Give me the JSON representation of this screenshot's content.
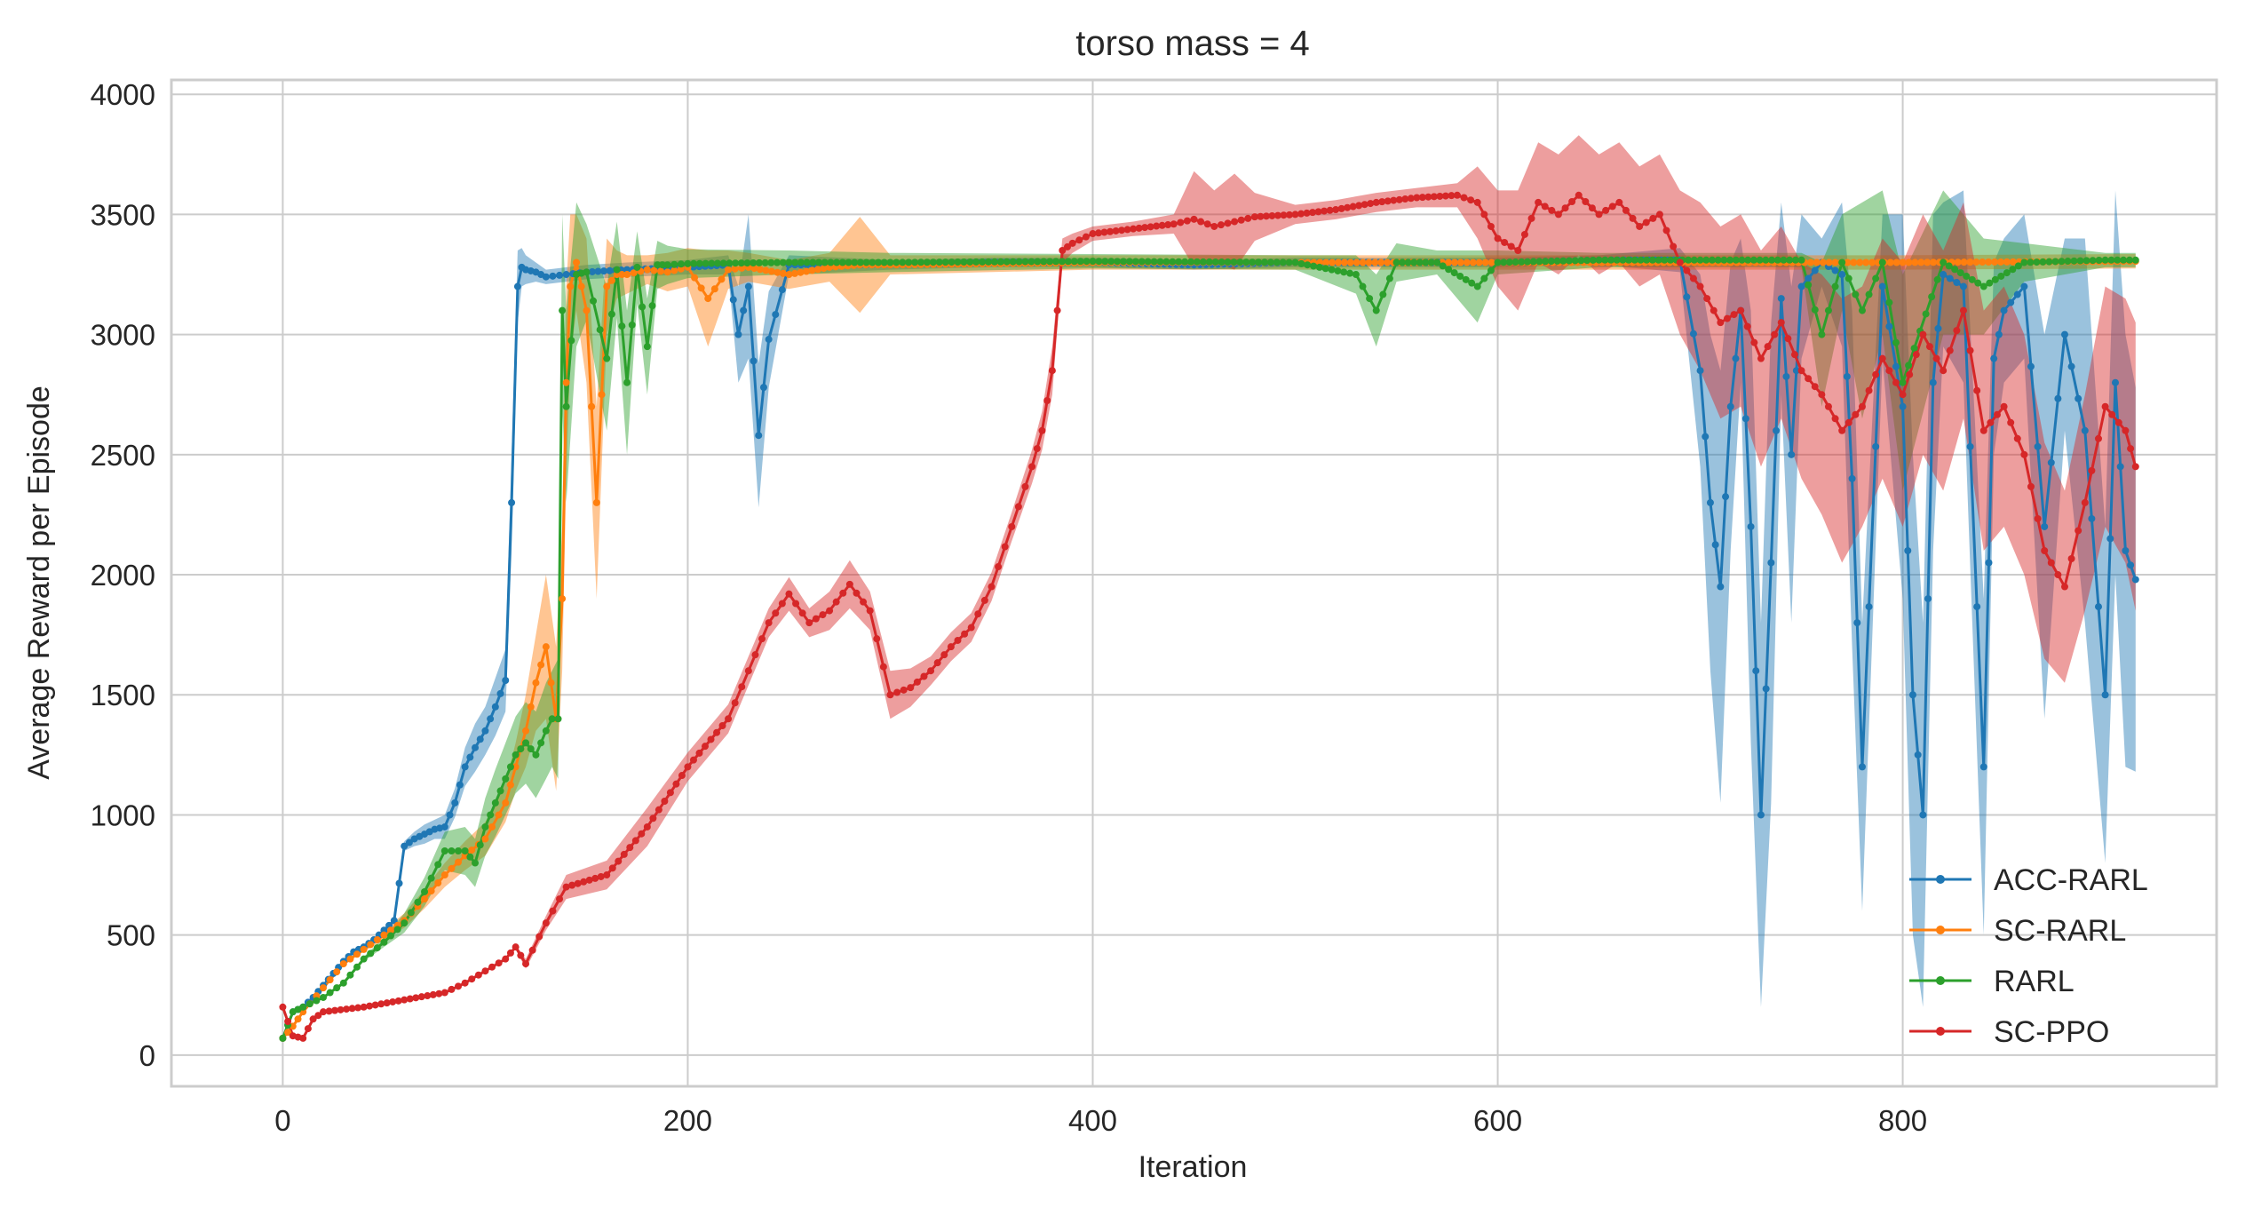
{
  "chart_data": {
    "type": "line",
    "title": "torso mass = 4",
    "xlabel": "Iteration",
    "ylabel": "Average Reward per Episode",
    "xlim": [
      -55,
      955
    ],
    "ylim": [
      -130,
      4060
    ],
    "xticks": [
      0,
      200,
      400,
      600,
      800
    ],
    "yticks": [
      0,
      500,
      1000,
      1500,
      2000,
      2500,
      3000,
      3500,
      4000
    ],
    "grid": true,
    "legend_position": "lower-right",
    "series": [
      {
        "name": "ACC-RARL",
        "color": "#1f77b4",
        "x": [
          0,
          5,
          10,
          15,
          20,
          25,
          30,
          35,
          40,
          45,
          50,
          55,
          60,
          65,
          70,
          75,
          80,
          85,
          90,
          95,
          100,
          105,
          110,
          113,
          116,
          118,
          120,
          125,
          130,
          140,
          150,
          170,
          200,
          220,
          225,
          230,
          235,
          240,
          250,
          300,
          350,
          400,
          450,
          500,
          550,
          600,
          650,
          690,
          700,
          705,
          710,
          715,
          720,
          725,
          730,
          735,
          740,
          745,
          750,
          760,
          770,
          775,
          780,
          790,
          800,
          805,
          810,
          815,
          820,
          830,
          840,
          845,
          850,
          860,
          870,
          880,
          890,
          900,
          905,
          910,
          915
        ],
        "values": [
          70,
          180,
          200,
          240,
          290,
          340,
          390,
          430,
          450,
          480,
          520,
          560,
          870,
          900,
          920,
          940,
          950,
          1050,
          1200,
          1280,
          1350,
          1450,
          1560,
          2300,
          3200,
          3280,
          3270,
          3260,
          3240,
          3250,
          3260,
          3270,
          3280,
          3290,
          3000,
          3200,
          2580,
          2980,
          3290,
          3290,
          3300,
          3300,
          3290,
          3300,
          3300,
          3300,
          3310,
          3310,
          2850,
          2300,
          1950,
          2700,
          3100,
          2200,
          1000,
          2050,
          3150,
          2500,
          3200,
          3300,
          3250,
          2400,
          1200,
          3200,
          2700,
          1500,
          1000,
          2800,
          3250,
          3200,
          1200,
          2900,
          3100,
          3200,
          2200,
          3000,
          2600,
          1500,
          2800,
          2100,
          1980
        ],
        "band": [
          0,
          0,
          0,
          0,
          0,
          0,
          0,
          0,
          0,
          0,
          0,
          0,
          20,
          30,
          40,
          40,
          50,
          60,
          80,
          100,
          100,
          120,
          130,
          200,
          150,
          80,
          60,
          40,
          30,
          30,
          30,
          30,
          30,
          40,
          200,
          300,
          300,
          200,
          40,
          20,
          20,
          20,
          20,
          20,
          20,
          20,
          20,
          50,
          400,
          700,
          900,
          600,
          300,
          900,
          800,
          1000,
          400,
          700,
          300,
          100,
          300,
          700,
          600,
          300,
          800,
          1000,
          800,
          700,
          300,
          400,
          700,
          400,
          300,
          300,
          800,
          400,
          800,
          700,
          800,
          900,
          800
        ]
      },
      {
        "name": "SC-RARL",
        "color": "#ff7f0e",
        "x": [
          0,
          5,
          10,
          20,
          30,
          40,
          50,
          60,
          70,
          80,
          90,
          100,
          110,
          115,
          120,
          125,
          130,
          135,
          138,
          140,
          142,
          145,
          150,
          155,
          160,
          165,
          170,
          180,
          190,
          200,
          210,
          220,
          230,
          250,
          270,
          285,
          300,
          400,
          500,
          600,
          700,
          800,
          915
        ],
        "values": [
          70,
          120,
          180,
          280,
          380,
          440,
          500,
          560,
          650,
          750,
          830,
          900,
          1050,
          1200,
          1350,
          1550,
          1700,
          1400,
          1900,
          2800,
          3200,
          3300,
          3100,
          2300,
          3200,
          3250,
          3250,
          3270,
          3260,
          3280,
          3150,
          3270,
          3280,
          3250,
          3280,
          3290,
          3290,
          3300,
          3300,
          3300,
          3300,
          3300,
          3305
        ],
        "band": [
          0,
          0,
          0,
          0,
          0,
          10,
          20,
          30,
          40,
          50,
          60,
          70,
          80,
          100,
          150,
          200,
          300,
          300,
          300,
          400,
          300,
          200,
          300,
          400,
          200,
          100,
          80,
          60,
          80,
          80,
          200,
          80,
          60,
          60,
          60,
          200,
          40,
          30,
          30,
          30,
          30,
          30,
          30
        ]
      },
      {
        "name": "RARL",
        "color": "#2ca02c",
        "x": [
          0,
          5,
          10,
          20,
          30,
          40,
          50,
          60,
          70,
          80,
          90,
          95,
          100,
          105,
          110,
          115,
          120,
          125,
          130,
          133,
          136,
          138,
          140,
          145,
          150,
          160,
          165,
          170,
          175,
          180,
          185,
          190,
          200,
          250,
          300,
          400,
          500,
          530,
          540,
          550,
          570,
          590,
          600,
          650,
          700,
          750,
          760,
          770,
          780,
          790,
          800,
          820,
          840,
          860,
          900,
          915
        ],
        "values": [
          70,
          180,
          200,
          240,
          300,
          400,
          470,
          550,
          680,
          850,
          850,
          800,
          950,
          1050,
          1150,
          1250,
          1300,
          1250,
          1350,
          1400,
          1400,
          3100,
          2700,
          3250,
          3260,
          2900,
          3270,
          2800,
          3280,
          2950,
          3290,
          3290,
          3295,
          3300,
          3300,
          3305,
          3300,
          3250,
          3100,
          3300,
          3300,
          3200,
          3300,
          3310,
          3310,
          3310,
          3000,
          3300,
          3100,
          3300,
          2800,
          3300,
          3200,
          3300,
          3310,
          3310
        ],
        "band": [
          0,
          0,
          0,
          0,
          0,
          10,
          20,
          40,
          60,
          80,
          100,
          100,
          120,
          140,
          150,
          160,
          170,
          180,
          200,
          200,
          250,
          400,
          400,
          300,
          200,
          300,
          200,
          300,
          150,
          200,
          100,
          80,
          60,
          50,
          40,
          30,
          30,
          80,
          150,
          80,
          50,
          150,
          50,
          30,
          30,
          30,
          300,
          200,
          450,
          300,
          450,
          300,
          200,
          80,
          30,
          30
        ]
      },
      {
        "name": "SC-PPO",
        "color": "#d62728",
        "x": [
          0,
          5,
          10,
          15,
          20,
          40,
          60,
          80,
          90,
          100,
          110,
          115,
          120,
          130,
          140,
          160,
          180,
          200,
          220,
          230,
          240,
          250,
          260,
          270,
          280,
          290,
          300,
          310,
          320,
          330,
          340,
          350,
          360,
          370,
          375,
          380,
          385,
          390,
          400,
          420,
          440,
          450,
          460,
          470,
          480,
          500,
          520,
          540,
          560,
          580,
          590,
          600,
          610,
          620,
          630,
          640,
          650,
          660,
          670,
          680,
          690,
          700,
          710,
          720,
          730,
          740,
          750,
          760,
          770,
          780,
          790,
          800,
          810,
          820,
          830,
          840,
          850,
          860,
          870,
          880,
          890,
          900,
          910,
          915
        ],
        "values": [
          200,
          80,
          70,
          150,
          180,
          200,
          230,
          260,
          300,
          350,
          400,
          450,
          380,
          550,
          700,
          750,
          950,
          1200,
          1400,
          1600,
          1800,
          1920,
          1800,
          1850,
          1960,
          1850,
          1500,
          1530,
          1600,
          1700,
          1780,
          1950,
          2200,
          2450,
          2600,
          2850,
          3350,
          3380,
          3420,
          3440,
          3460,
          3480,
          3450,
          3470,
          3490,
          3500,
          3520,
          3550,
          3570,
          3580,
          3550,
          3400,
          3350,
          3550,
          3500,
          3580,
          3500,
          3550,
          3450,
          3500,
          3300,
          3200,
          3050,
          3100,
          2900,
          3050,
          2850,
          2750,
          2600,
          2700,
          2900,
          2750,
          3000,
          2850,
          3100,
          2600,
          2700,
          2500,
          2100,
          1950,
          2300,
          2700,
          2600,
          2450
        ],
        "band": [
          0,
          0,
          0,
          0,
          0,
          0,
          0,
          0,
          0,
          0,
          0,
          10,
          20,
          30,
          50,
          60,
          80,
          60,
          60,
          60,
          60,
          70,
          60,
          80,
          100,
          80,
          100,
          80,
          60,
          60,
          60,
          60,
          60,
          70,
          80,
          100,
          50,
          40,
          30,
          30,
          40,
          200,
          150,
          200,
          100,
          40,
          40,
          40,
          40,
          50,
          150,
          200,
          250,
          250,
          250,
          250,
          250,
          250,
          250,
          250,
          300,
          350,
          400,
          400,
          450,
          400,
          450,
          500,
          550,
          500,
          500,
          550,
          500,
          500,
          450,
          500,
          500,
          500,
          450,
          400,
          450,
          500,
          550,
          600
        ]
      }
    ]
  }
}
